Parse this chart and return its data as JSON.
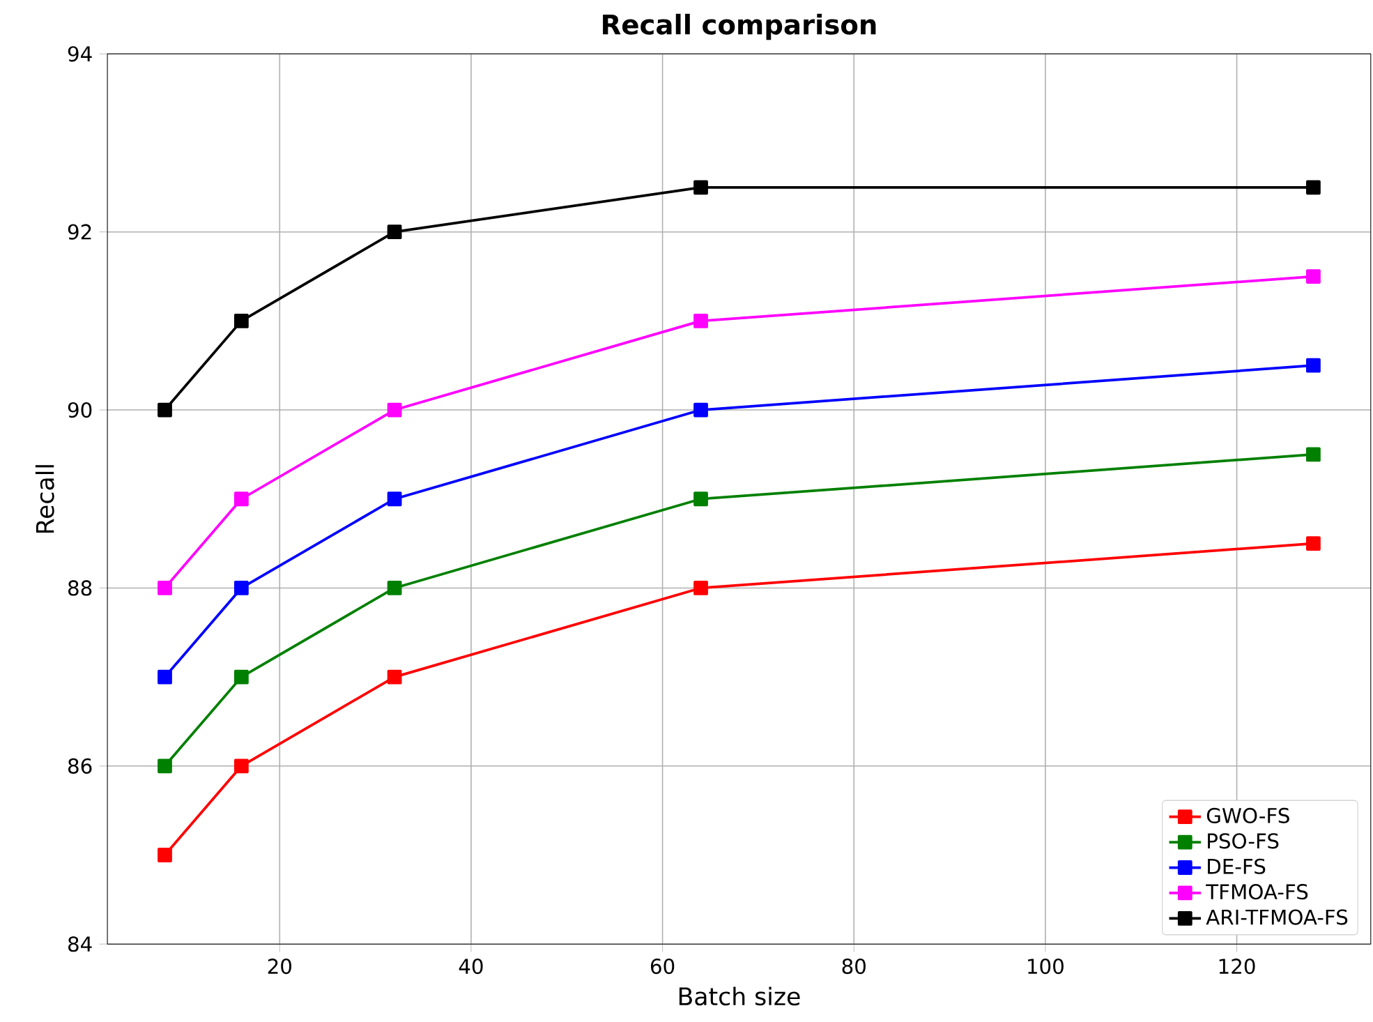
{
  "chart_data": {
    "type": "line",
    "title": "Recall comparison",
    "xlabel": "Batch size",
    "ylabel": "Recall",
    "x": [
      8,
      16,
      32,
      64,
      128
    ],
    "series": [
      {
        "name": "GWO-FS",
        "color": "#ff0000",
        "values": [
          85,
          86,
          87,
          88,
          88.5
        ]
      },
      {
        "name": "PSO-FS",
        "color": "#008000",
        "values": [
          86,
          87,
          88,
          89,
          89.5
        ]
      },
      {
        "name": "DE-FS",
        "color": "#0000ff",
        "values": [
          87,
          88,
          89,
          90,
          90.5
        ]
      },
      {
        "name": "TFMOA-FS",
        "color": "#ff00ff",
        "values": [
          88,
          89,
          90,
          91,
          91.5
        ]
      },
      {
        "name": "ARI-TFMOA-FS",
        "color": "#000000",
        "values": [
          90,
          91,
          92,
          92.5,
          92.5
        ]
      }
    ],
    "xlim": [
      2,
      134
    ],
    "ylim": [
      84,
      94
    ],
    "xticks": [
      20,
      40,
      60,
      80,
      100,
      120
    ],
    "yticks": [
      84,
      86,
      88,
      90,
      92,
      94
    ],
    "grid": true,
    "legend": "bottom right",
    "marker": "square",
    "line_style": "solid"
  }
}
